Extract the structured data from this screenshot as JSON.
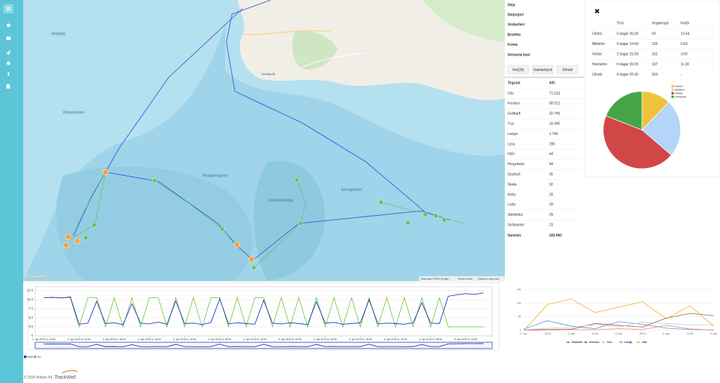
{
  "map": {
    "labels": [
      "Jökuldjúp",
      "Eldeyjarbanki",
      "Reykjanesgrunn",
      "Grindavíkurdjúp",
      "Selvogsbanki",
      "Grindavík"
    ],
    "attribution": "Map data ©2019 Google",
    "terms": "Terms of Use",
    "report": "Report a map error",
    "logo": "Google"
  },
  "info": {
    "fields": [
      "Skip",
      "Skipstjóri",
      "Veiðarfæri",
      "Brottför",
      "Koma",
      "Seinasta kast"
    ],
    "buttons": [
      "Hol(28)",
      "Gæðaskýrsl",
      "Úthald"
    ]
  },
  "catch_table": {
    "columns": [
      "Tegund",
      "Afli"
    ],
    "rows": [
      [
        "Ufsi",
        "71.013"
      ],
      [
        "Þorskur",
        "58.012"
      ],
      [
        "Gullkarfi",
        "32.745"
      ],
      [
        "Ýsa",
        "18.995"
      ],
      [
        "Langa",
        "1.740"
      ],
      [
        "Lýsa",
        "290"
      ],
      [
        "Hlýri",
        "44"
      ],
      [
        "Hrognkelsi",
        "44"
      ],
      [
        "Skarkoli",
        "35"
      ],
      [
        "Skata",
        "32"
      ],
      [
        "Keila",
        "29"
      ],
      [
        "Lúða",
        "29"
      ],
      [
        "Steinbítur",
        "29"
      ],
      [
        "Skötuselur",
        "23"
      ]
    ],
    "total": [
      "Samtals",
      "183.060"
    ]
  },
  "summary_table": {
    "close": "✖",
    "columns": [
      "Tími",
      "Vegalengd",
      "Hraði"
    ],
    "rows": [
      [
        "Útstím",
        "0 dagar 06:30",
        69,
        "10.64"
      ],
      [
        "Millistím",
        "0 dagar 19:43",
        135,
        "6.83"
      ],
      [
        "Veiðar",
        "2 dagar 21:58",
        252,
        "3.60"
      ],
      [
        "Heimstím",
        "0 dagar 09:26",
        107,
        "11.30"
      ],
      [
        "Úthald",
        "4 dagar 09:40",
        563,
        "-"
      ]
    ],
    "pie_colors": [
      "#f0c23b",
      "#b3d5f7",
      "#d14646",
      "#46a546"
    ]
  },
  "footer": {
    "copyright": "© 2019 Hafsyn frá",
    "brand": "TrackWell"
  },
  "chart_data": [
    {
      "type": "line",
      "x": [
        0,
        2,
        4,
        6,
        8,
        10,
        12,
        14,
        16,
        18,
        20,
        22,
        24,
        26,
        28,
        30,
        32,
        34,
        36,
        38,
        40,
        42,
        44,
        46,
        48,
        50,
        52,
        54,
        56,
        58,
        60,
        62,
        64,
        66,
        68,
        70,
        72,
        74,
        76,
        78,
        80,
        82,
        84,
        86,
        88,
        90,
        92,
        94,
        96,
        98,
        100
      ],
      "series": [
        {
          "name": "Hraði",
          "color": "#1f2fbf",
          "values": [
            10.5,
            10.6,
            10.4,
            10.7,
            3.2,
            3.5,
            9.5,
            3.4,
            3.6,
            3.1,
            8.8,
            3.5,
            3.3,
            3.8,
            3.2,
            9.6,
            3.4,
            3.5,
            3.1,
            3.7,
            10.2,
            3.3,
            3.6,
            3.4,
            3.2,
            9.8,
            3.5,
            3.3,
            3.6,
            3.4,
            3.1,
            9.4,
            3.5,
            3.7,
            3.2,
            3.4,
            3.6,
            9.9,
            3.3,
            3.5,
            3.4,
            3.2,
            3.6,
            9.1,
            3.5,
            3.4,
            10.9,
            11.3,
            11.6,
            11.4,
            11.8
          ]
        },
        {
          "name": "Hol",
          "color": "#6fc94a",
          "values": [
            10.5,
            10.5,
            10.5,
            10.5,
            2.5,
            10.5,
            10.5,
            2.5,
            10.5,
            2.5,
            10.5,
            2.5,
            10.5,
            10.5,
            2.5,
            10.5,
            2.5,
            10.5,
            2.5,
            10.5,
            10.5,
            2.5,
            10.5,
            2.5,
            10.5,
            10.5,
            2.5,
            10.5,
            2.5,
            10.5,
            2.5,
            10.5,
            2.5,
            10.5,
            2.5,
            10.5,
            2.5,
            10.5,
            2.5,
            10.5,
            2.5,
            10.5,
            2.5,
            10.5,
            2.5,
            10.5,
            2.5,
            2.5,
            2.5,
            2.5,
            2.5
          ]
        }
      ],
      "xlim": [
        -2,
        102
      ],
      "xticks": [
        {
          "value": 0,
          "label": "2. apr 2019 kl. 16:00"
        },
        {
          "value": 8,
          "label": "3. apr 2019 kl. 00:00"
        },
        {
          "value": 16,
          "label": "3. apr 2019 kl. 08:00"
        },
        {
          "value": 24,
          "label": "3. apr 2019 kl. 16:00"
        },
        {
          "value": 32,
          "label": "4. apr 2019 kl. 00:00"
        },
        {
          "value": 40,
          "label": "4. apr 2019 kl. 08:00"
        },
        {
          "value": 48,
          "label": "4. apr 2019 kl. 16:00"
        },
        {
          "value": 56,
          "label": "5. apr 2019 kl. 00:00"
        },
        {
          "value": 64,
          "label": "5. apr 2019 kl. 08:00"
        },
        {
          "value": 72,
          "label": "5. apr 2019 kl. 16:00"
        },
        {
          "value": 80,
          "label": "6. apr 2019 kl. 00:00"
        },
        {
          "value": 88,
          "label": "6. apr 2019 kl. 08:00"
        },
        {
          "value": 96,
          "label": "6. apr 2019 kl. 16:00"
        }
      ],
      "ylim": [
        0,
        13.5
      ],
      "yticks": [
        0,
        2.5,
        {
          "value": 5,
          "label": "5.0"
        },
        7.5,
        {
          "value": 10,
          "label": "10.0"
        },
        12.5
      ],
      "grid": true
    },
    {
      "type": "line",
      "categories": [
        "2. Apr",
        "16:00",
        "3. Apr",
        "16:00",
        "4. Apr",
        "16:00",
        "5. Apr",
        "16:00",
        "6. Apr"
      ],
      "series": [
        {
          "name": "Gullkarfi",
          "color": "#5b8fd6",
          "values": [
            500,
            3500,
            1500,
            600,
            3200,
            2200,
            800,
            300,
            200
          ]
        },
        {
          "name": "Þorskur",
          "color": "#8a5a3c",
          "values": [
            200,
            300,
            400,
            2500,
            1800,
            1200,
            4500,
            6200,
            5400
          ]
        },
        {
          "name": "Ýsa",
          "color": "#c3c9e3",
          "values": [
            100,
            800,
            1000,
            2100,
            1200,
            3000,
            2500,
            1900,
            2000
          ]
        },
        {
          "name": "Langa",
          "color": "#ef7f7f",
          "values": [
            0,
            100,
            300,
            200,
            600,
            300,
            1800,
            500,
            100
          ]
        },
        {
          "name": "Ufsi",
          "color": "#f5a623",
          "values": [
            0,
            9500,
            11500,
            6500,
            8500,
            10500,
            4200,
            9000,
            1600
          ]
        }
      ],
      "ylim": [
        0,
        15000
      ],
      "yticks": [
        0,
        {
          "value": 5000,
          "label": "5k"
        },
        {
          "value": 10000,
          "label": "10k"
        },
        {
          "value": 15000,
          "label": "15k"
        }
      ],
      "grid": true,
      "legend": "bottom"
    }
  ]
}
